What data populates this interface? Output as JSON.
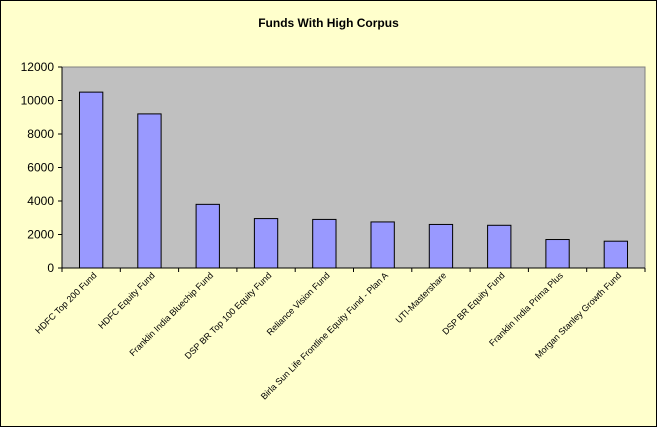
{
  "chart_data": {
    "type": "bar",
    "title": "Funds With High Corpus",
    "xlabel": "",
    "ylabel": "",
    "ylim": [
      0,
      12000
    ],
    "yticks": [
      0,
      2000,
      4000,
      6000,
      8000,
      10000,
      12000
    ],
    "grid": false,
    "legend": "none",
    "categories": [
      "HDFC Top 200 Fund",
      "HDFC Equity Fund",
      "Franklin India Bluechip Fund",
      "DSP BR Top 100 Equity Fund",
      "Reliance Vision Fund",
      "Birla Sun Life Frontline Equity Fund - Plan A",
      "UTI-Mastershare",
      "DSP BR Equity Fund",
      "Franklin India Prima Plus",
      "Morgan Stanley Growth Fund"
    ],
    "values": [
      10500,
      9200,
      3800,
      2950,
      2900,
      2750,
      2600,
      2550,
      1700,
      1600
    ],
    "colors": {
      "background": "#ffffcc",
      "plot_area": "#c0c0c0",
      "bar_fill": "#9999ff",
      "bar_stroke": "#000000"
    }
  }
}
